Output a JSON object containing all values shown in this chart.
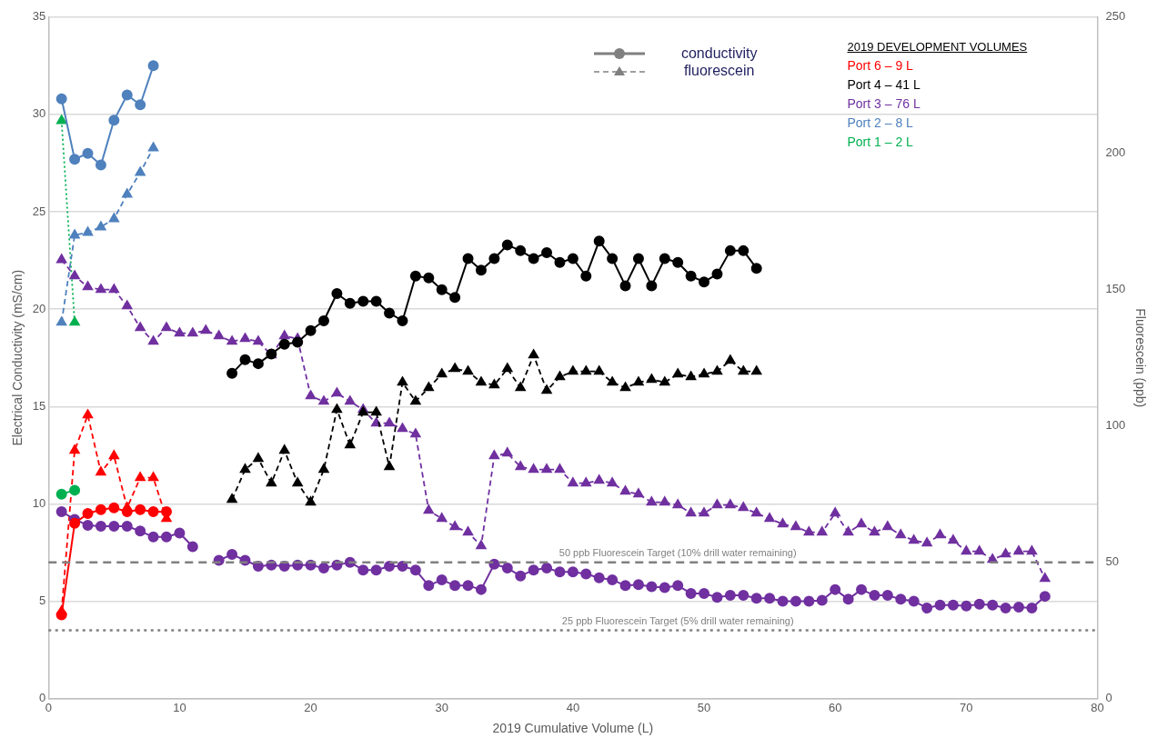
{
  "chart_data": {
    "type": "line",
    "xlabel": "2019 Cumulative Volume (L)",
    "ylabel": "Electrical Conductivity (mS/cm)",
    "y2label": "Fluorescein (ppb)",
    "legend_title": "2019 DEVELOPMENT VOLUMES",
    "legend": "top right",
    "grid": "y",
    "xlim": [
      0,
      80
    ],
    "xticks": [
      0,
      10,
      20,
      30,
      40,
      50,
      60,
      70,
      80
    ],
    "ylim": [
      0,
      35
    ],
    "yticks": [
      0,
      5,
      10,
      15,
      20,
      25,
      30,
      35
    ],
    "y2lim": [
      0,
      250
    ],
    "y2ticks": [
      0,
      50,
      100,
      150,
      200,
      250
    ],
    "annotations": [
      "conductivity",
      "fluorescein"
    ],
    "ref_lines": [
      {
        "axis": "y2",
        "value": 50,
        "label": "50 ppb Fluorescein Target (10% drill water remaining)",
        "color": "#808080",
        "line_style": "dashed"
      },
      {
        "axis": "y2",
        "value": 25,
        "label": "25 ppb Fluorescein Target (5% drill water remaining)",
        "color": "#808080",
        "line_style": "dotted"
      }
    ],
    "series": [
      {
        "name": "Port 6 – 9 L",
        "type": "line",
        "color": "#ff0000",
        "marker": "circle",
        "line_style": "solid",
        "x": [
          1,
          2,
          3,
          4,
          5,
          6,
          7,
          8,
          9
        ],
        "values": [
          4.3,
          9.0,
          9.5,
          9.7,
          9.8,
          9.6,
          9.7,
          9.6,
          9.6
        ]
      },
      {
        "name": "Port 4 – 41 L",
        "type": "line",
        "color": "#000000",
        "marker": "circle",
        "line_style": "solid",
        "x": [
          14,
          15,
          16,
          17,
          18,
          19,
          20,
          21,
          22,
          23,
          24,
          25,
          26,
          27,
          28,
          29,
          30,
          31,
          32,
          33,
          34,
          35,
          36,
          37,
          38,
          39,
          40,
          41,
          42,
          43,
          44,
          45,
          46,
          47,
          48,
          49,
          50,
          51,
          52,
          53,
          54
        ],
        "values": [
          16.7,
          17.4,
          17.2,
          17.7,
          18.2,
          18.3,
          18.9,
          19.4,
          20.8,
          20.3,
          20.4,
          20.4,
          19.8,
          19.4,
          21.7,
          21.6,
          21.0,
          20.6,
          22.6,
          22.0,
          22.6,
          23.3,
          23.0,
          22.6,
          22.9,
          22.4,
          22.6,
          21.7,
          23.5,
          22.6,
          21.2,
          22.6,
          21.2,
          22.6,
          22.4,
          21.7,
          21.4,
          21.8,
          23.0,
          23.0,
          22.1
        ]
      },
      {
        "name": "Port 3 – 76 L",
        "type": "line",
        "color": "#7030a0",
        "marker": "circle",
        "line_style": "solid",
        "x": [
          1,
          2,
          3,
          4,
          5,
          6,
          7,
          8,
          9,
          10,
          11,
          12,
          13,
          14,
          15,
          16,
          17,
          18,
          19,
          20,
          21,
          22,
          23,
          24,
          25,
          26,
          27,
          28,
          29,
          30,
          31,
          32,
          33,
          34,
          35,
          36,
          37,
          38,
          39,
          40,
          41,
          42,
          43,
          44,
          45,
          46,
          47,
          48,
          49,
          50,
          51,
          52,
          53,
          54,
          55,
          56,
          57,
          58,
          59,
          60,
          61,
          62,
          63,
          64,
          65,
          66,
          67,
          68,
          69,
          70,
          71,
          72,
          73,
          74,
          75,
          76
        ],
        "values": [
          9.6,
          9.2,
          8.9,
          8.85,
          8.85,
          8.85,
          8.6,
          8.3,
          8.3,
          8.5,
          7.8,
          null,
          7.1,
          7.4,
          7.1,
          6.8,
          6.85,
          6.8,
          6.85,
          6.85,
          6.7,
          6.85,
          7.0,
          6.6,
          6.6,
          6.8,
          6.8,
          6.6,
          5.8,
          6.1,
          5.8,
          5.8,
          5.6,
          6.9,
          6.7,
          6.3,
          6.6,
          6.7,
          6.5,
          6.5,
          6.4,
          6.2,
          6.1,
          5.8,
          5.85,
          5.75,
          5.7,
          5.8,
          5.4,
          5.4,
          5.2,
          5.3,
          5.3,
          5.15,
          5.15,
          5.0,
          5.0,
          5.0,
          5.05,
          5.6,
          5.1,
          5.6,
          5.3,
          5.3,
          5.1,
          5.0,
          4.65,
          4.8,
          4.8,
          4.75,
          4.85,
          4.8,
          4.65,
          4.7,
          4.65,
          5.25
        ]
      },
      {
        "name": "Port 2 – 8 L",
        "type": "line",
        "color": "#4f81bd",
        "marker": "circle",
        "line_style": "solid",
        "x": [
          1,
          2,
          3,
          4,
          5,
          6,
          7,
          8
        ],
        "values": [
          30.8,
          27.7,
          28.0,
          27.4,
          29.7,
          31.0,
          30.5,
          32.5
        ]
      },
      {
        "name": "Port 1 – 2 L",
        "type": "line",
        "color": "#00b050",
        "marker": "circle",
        "line_style": "solid",
        "x": [
          1,
          2
        ],
        "values": [
          10.5,
          10.7
        ]
      },
      {
        "type": "line",
        "axis": "y2",
        "color": "#ff0000",
        "marker": "triangle",
        "line_style": "dashed",
        "x": [
          1,
          2,
          3,
          4,
          5,
          6,
          7,
          8,
          9
        ],
        "values": [
          32,
          91,
          104,
          83,
          89,
          70,
          81,
          81,
          66
        ]
      },
      {
        "type": "line",
        "axis": "y2",
        "color": "#000000",
        "marker": "triangle",
        "line_style": "dashed",
        "x": [
          14,
          15,
          16,
          17,
          18,
          19,
          20,
          21,
          22,
          23,
          24,
          25,
          26,
          27,
          28,
          29,
          30,
          31,
          32,
          33,
          34,
          35,
          36,
          37,
          38,
          39,
          40,
          41,
          42,
          43,
          44,
          45,
          46,
          47,
          48,
          49,
          50,
          51,
          52,
          53,
          54
        ],
        "values": [
          73,
          84,
          88,
          79,
          91,
          79,
          72,
          84,
          106,
          93,
          105,
          105,
          85,
          116,
          109,
          114,
          119,
          121,
          120,
          116,
          115,
          121,
          114,
          126,
          113,
          118,
          120,
          120,
          120,
          116,
          114,
          116,
          117,
          116,
          119,
          118,
          119,
          120,
          124,
          120,
          120
        ]
      },
      {
        "type": "line",
        "axis": "y2",
        "color": "#7030a0",
        "marker": "triangle",
        "line_style": "dashed",
        "x": [
          1,
          2,
          3,
          4,
          5,
          6,
          7,
          8,
          9,
          10,
          11,
          12,
          13,
          14,
          15,
          16,
          17,
          18,
          19,
          20,
          21,
          22,
          23,
          24,
          25,
          26,
          27,
          28,
          29,
          30,
          31,
          32,
          33,
          34,
          35,
          36,
          37,
          38,
          39,
          40,
          41,
          42,
          43,
          44,
          45,
          46,
          47,
          48,
          49,
          50,
          51,
          52,
          53,
          54,
          55,
          56,
          57,
          58,
          59,
          60,
          61,
          62,
          63,
          64,
          65,
          66,
          67,
          68,
          69,
          70,
          71,
          72,
          73,
          74,
          75,
          76
        ],
        "values": [
          161,
          155,
          151,
          150,
          150,
          144,
          136,
          131,
          136,
          134,
          134,
          135,
          133,
          131,
          132,
          131,
          126,
          133,
          132,
          111,
          109,
          112,
          109,
          106,
          101,
          101,
          99,
          97,
          69,
          66,
          63,
          61,
          56,
          89,
          90,
          85,
          84,
          84,
          84,
          79,
          79,
          80,
          79,
          76,
          75,
          72,
          72,
          71,
          68,
          68,
          71,
          71,
          70,
          68,
          66,
          64,
          63,
          61,
          61,
          68,
          61,
          64,
          61,
          63,
          60,
          58,
          57,
          60,
          58,
          54,
          54,
          51,
          53,
          54,
          54,
          44
        ]
      },
      {
        "type": "line",
        "axis": "y2",
        "color": "#4f81bd",
        "marker": "triangle",
        "line_style": "dashed",
        "x": [
          1,
          2,
          3,
          4,
          5,
          6,
          7,
          8
        ],
        "values": [
          138,
          170,
          171,
          173,
          176,
          185,
          193,
          202
        ]
      },
      {
        "type": "line",
        "axis": "y2",
        "color": "#00b050",
        "marker": "triangle",
        "line_style": "dotted",
        "x": [
          1,
          2
        ],
        "values": [
          212,
          138
        ]
      }
    ]
  }
}
